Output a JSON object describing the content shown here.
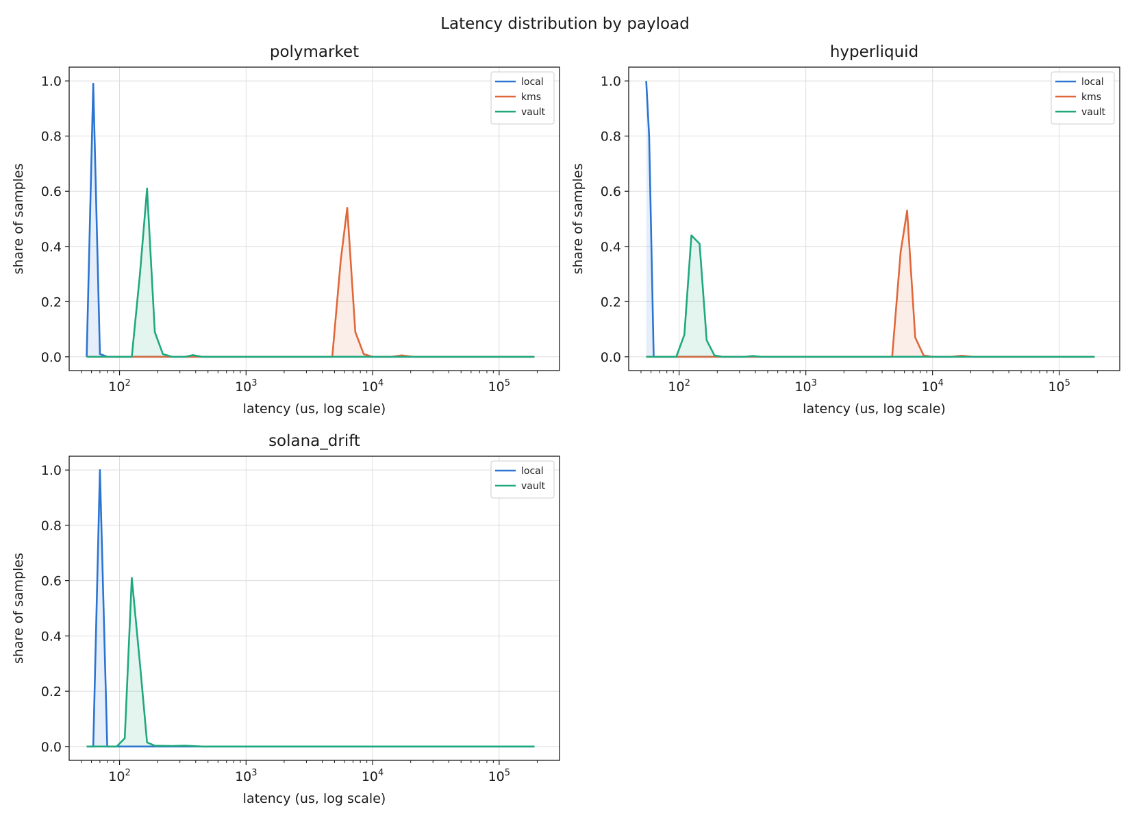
{
  "suptitle": "Latency distribution by payload",
  "colors": {
    "local": "#2b74d1",
    "kms": "#e0673a",
    "vault": "#1fa87e"
  },
  "chart_data": [
    {
      "type": "area",
      "title": "polymarket",
      "xlabel": "latency (us, log scale)",
      "ylabel": "share of samples",
      "xscale": "log",
      "xlim": [
        40,
        300000
      ],
      "ylim": [
        -0.05,
        1.05
      ],
      "yticks": [
        "0.0",
        "0.2",
        "0.4",
        "0.6",
        "0.8",
        "1.0"
      ],
      "xticks": [
        {
          "base": "10",
          "exp": "2"
        },
        {
          "base": "10",
          "exp": "3"
        },
        {
          "base": "10",
          "exp": "4"
        },
        {
          "base": "10",
          "exp": "5"
        }
      ],
      "grid": true,
      "legend": "top-right",
      "series": [
        {
          "name": "local",
          "color": "#2b74d1",
          "points": [
            [
              55,
              0
            ],
            [
              62,
              0.99
            ],
            [
              70,
              0.01
            ],
            [
              80,
              0
            ],
            [
              190000,
              0
            ]
          ]
        },
        {
          "name": "kms",
          "color": "#e0673a",
          "points": [
            [
              55,
              0
            ],
            [
              4800,
              0
            ],
            [
              5600,
              0.35
            ],
            [
              6300,
              0.54
            ],
            [
              7300,
              0.09
            ],
            [
              8500,
              0.01
            ],
            [
              10000,
              0
            ],
            [
              14000,
              0
            ],
            [
              17000,
              0.005
            ],
            [
              21000,
              0
            ],
            [
              190000,
              0
            ]
          ]
        },
        {
          "name": "vault",
          "color": "#1fa87e",
          "points": [
            [
              55,
              0
            ],
            [
              125,
              0
            ],
            [
              145,
              0.3
            ],
            [
              165,
              0.61
            ],
            [
              190,
              0.09
            ],
            [
              220,
              0.01
            ],
            [
              260,
              0
            ],
            [
              330,
              0
            ],
            [
              380,
              0.006
            ],
            [
              450,
              0
            ],
            [
              190000,
              0
            ]
          ]
        }
      ]
    },
    {
      "type": "area",
      "title": "hyperliquid",
      "xlabel": "latency (us, log scale)",
      "ylabel": "share of samples",
      "xscale": "log",
      "xlim": [
        40,
        300000
      ],
      "ylim": [
        -0.05,
        1.05
      ],
      "yticks": [
        "0.0",
        "0.2",
        "0.4",
        "0.6",
        "0.8",
        "1.0"
      ],
      "xticks": [
        {
          "base": "10",
          "exp": "2"
        },
        {
          "base": "10",
          "exp": "3"
        },
        {
          "base": "10",
          "exp": "4"
        },
        {
          "base": "10",
          "exp": "5"
        }
      ],
      "grid": true,
      "legend": "top-right",
      "series": [
        {
          "name": "local",
          "color": "#2b74d1",
          "points": [
            [
              55,
              1.0
            ],
            [
              58,
              0.8
            ],
            [
              63,
              0
            ],
            [
              190000,
              0
            ]
          ]
        },
        {
          "name": "kms",
          "color": "#e0673a",
          "points": [
            [
              55,
              0
            ],
            [
              4800,
              0
            ],
            [
              5600,
              0.38
            ],
            [
              6300,
              0.53
            ],
            [
              7300,
              0.07
            ],
            [
              8500,
              0.005
            ],
            [
              10000,
              0
            ],
            [
              14000,
              0
            ],
            [
              17000,
              0.004
            ],
            [
              21000,
              0
            ],
            [
              190000,
              0
            ]
          ]
        },
        {
          "name": "vault",
          "color": "#1fa87e",
          "points": [
            [
              55,
              0
            ],
            [
              95,
              0
            ],
            [
              110,
              0.08
            ],
            [
              125,
              0.44
            ],
            [
              145,
              0.41
            ],
            [
              165,
              0.06
            ],
            [
              190,
              0.005
            ],
            [
              220,
              0
            ],
            [
              330,
              0
            ],
            [
              380,
              0.003
            ],
            [
              450,
              0
            ],
            [
              190000,
              0
            ]
          ]
        }
      ]
    },
    {
      "type": "area",
      "title": "solana_drift",
      "xlabel": "latency (us, log scale)",
      "ylabel": "share of samples",
      "xscale": "log",
      "xlim": [
        40,
        300000
      ],
      "ylim": [
        -0.05,
        1.05
      ],
      "yticks": [
        "0.0",
        "0.2",
        "0.4",
        "0.6",
        "0.8",
        "1.0"
      ],
      "xticks": [
        {
          "base": "10",
          "exp": "2"
        },
        {
          "base": "10",
          "exp": "3"
        },
        {
          "base": "10",
          "exp": "4"
        },
        {
          "base": "10",
          "exp": "5"
        }
      ],
      "grid": true,
      "legend": "top-right",
      "series": [
        {
          "name": "local",
          "color": "#2b74d1",
          "points": [
            [
              55,
              0
            ],
            [
              62,
              0
            ],
            [
              70,
              1.0
            ],
            [
              80,
              0
            ],
            [
              190000,
              0
            ]
          ]
        },
        {
          "name": "vault",
          "color": "#1fa87e",
          "points": [
            [
              55,
              0
            ],
            [
              95,
              0
            ],
            [
              110,
              0.03
            ],
            [
              125,
              0.61
            ],
            [
              145,
              0.3
            ],
            [
              165,
              0.015
            ],
            [
              190,
              0.003
            ],
            [
              260,
              0.002
            ],
            [
              330,
              0.003
            ],
            [
              450,
              0
            ],
            [
              190000,
              0
            ]
          ]
        }
      ]
    }
  ]
}
